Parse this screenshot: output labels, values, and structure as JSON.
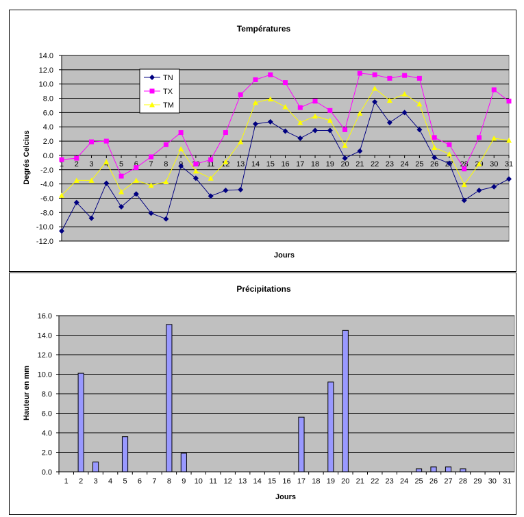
{
  "chart_data": [
    {
      "type": "line",
      "title": "Températures",
      "xlabel": "Jours",
      "ylabel": "Degrés Celcius",
      "ylim": [
        -12.0,
        14.0
      ],
      "ystep": 2.0,
      "categories": [
        "1",
        "2",
        "3",
        "4",
        "5",
        "6",
        "7",
        "8",
        "9",
        "10",
        "11",
        "12",
        "13",
        "14",
        "15",
        "16",
        "17",
        "18",
        "19",
        "20",
        "21",
        "22",
        "23",
        "24",
        "25",
        "26",
        "27",
        "28",
        "29",
        "30",
        "31"
      ],
      "grid": true,
      "plot_background": "#C0C0C0",
      "legend_placement": "top-left inside plot",
      "series": [
        {
          "name": "TN",
          "color": "#000080",
          "marker": "diamond",
          "values": [
            -10.6,
            -6.6,
            -8.8,
            -3.9,
            -7.2,
            -5.4,
            -8.1,
            -8.9,
            -1.5,
            -3.2,
            -5.7,
            -4.9,
            -4.8,
            4.4,
            4.7,
            3.4,
            2.4,
            3.5,
            3.5,
            -0.4,
            0.6,
            7.5,
            4.6,
            6.0,
            3.6,
            -0.3,
            -1.1,
            -6.3,
            -4.9,
            -4.4,
            -3.3
          ]
        },
        {
          "name": "TX",
          "color": "#FF00FF",
          "marker": "square",
          "values": [
            -0.6,
            -0.4,
            1.9,
            2.0,
            -2.9,
            -1.7,
            -0.2,
            1.5,
            3.2,
            -1.2,
            -0.6,
            3.2,
            8.5,
            10.6,
            11.3,
            10.2,
            6.7,
            7.6,
            6.3,
            3.6,
            11.5,
            11.3,
            10.8,
            11.2,
            10.8,
            2.5,
            1.5,
            -1.9,
            2.5,
            9.2,
            7.6
          ]
        },
        {
          "name": "TM",
          "color": "#FFFF00",
          "marker": "triangle",
          "values": [
            -5.6,
            -3.5,
            -3.5,
            -0.9,
            -5.1,
            -3.5,
            -4.2,
            -3.7,
            0.9,
            -2.2,
            -3.2,
            -0.9,
            1.9,
            7.4,
            7.9,
            6.8,
            4.6,
            5.5,
            4.9,
            1.4,
            5.9,
            9.4,
            7.7,
            8.6,
            7.2,
            1.1,
            0.2,
            -4.1,
            -1.2,
            2.4,
            2.1
          ]
        }
      ]
    },
    {
      "type": "bar",
      "title": "Précipitations",
      "xlabel": "Jours",
      "ylabel": "Hauteur en mm",
      "ylim": [
        0.0,
        16.0
      ],
      "ystep": 2.0,
      "categories": [
        "1",
        "2",
        "3",
        "4",
        "5",
        "6",
        "7",
        "8",
        "9",
        "10",
        "11",
        "12",
        "13",
        "14",
        "15",
        "16",
        "17",
        "18",
        "19",
        "20",
        "21",
        "22",
        "23",
        "24",
        "25",
        "26",
        "27",
        "28",
        "29",
        "30",
        "31"
      ],
      "grid": true,
      "plot_background": "#C0C0C0",
      "bar_color": "#9999FF",
      "values": [
        0,
        10.1,
        1.0,
        0,
        3.6,
        0,
        0,
        15.1,
        1.9,
        0,
        0,
        0,
        0,
        0,
        0,
        0,
        5.6,
        0,
        9.2,
        14.5,
        0,
        0,
        0,
        0,
        0.3,
        0.5,
        0.5,
        0.3,
        0,
        0,
        0
      ]
    }
  ]
}
